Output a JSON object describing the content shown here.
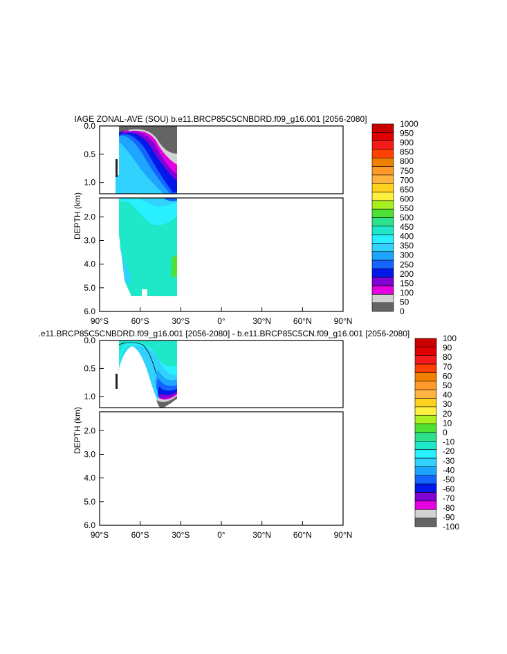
{
  "chart_data": [
    {
      "type": "heatmap",
      "title": "IAGE ZONAL-AVE (SOU) b.e11.BRCP85C5CNBDRD.f09_g16.001 [2056-2080]",
      "ylabel": "DEPTH (km)",
      "x_ticks": [
        "90°S",
        "60°S",
        "30°S",
        "0°",
        "30°N",
        "60°N",
        "90°N"
      ],
      "y_ticks_top": [
        "0.0",
        "0.5",
        "1.0"
      ],
      "y_ticks_bottom": [
        "2.0",
        "3.0",
        "4.0",
        "5.0",
        "6.0"
      ],
      "xlim": [
        -90,
        90
      ],
      "ylim": [
        0,
        6
      ],
      "colorbar": {
        "labels": [
          "1000",
          "950",
          "900",
          "850",
          "800",
          "750",
          "700",
          "650",
          "600",
          "550",
          "500",
          "450",
          "400",
          "350",
          "300",
          "250",
          "200",
          "150",
          "100",
          "50",
          "0"
        ],
        "colors": [
          "#c80000",
          "#e00000",
          "#f51a1a",
          "#ff4000",
          "#f08000",
          "#ff9a2a",
          "#ffb340",
          "#ffd21e",
          "#fff040",
          "#a8f020",
          "#4ee032",
          "#2ce08c",
          "#1ee8c8",
          "#28f0ff",
          "#32d2ff",
          "#1ea5ff",
          "#1464ff",
          "#0018e8",
          "#8000d6",
          "#e400e0",
          "#d2d2d2",
          "#646464"
        ]
      }
    },
    {
      "type": "heatmap",
      "title": ".e11.BRCP85C5CNBDRD.f09_g16.001 [2056-2080] - b.e11.BRCP85C5CN.f09_g16.001 [2056-2080]",
      "ylabel": "DEPTH (km)",
      "x_ticks": [
        "90°S",
        "60°S",
        "30°S",
        "0°",
        "30°N",
        "60°N",
        "90°N"
      ],
      "y_ticks_top": [
        "0.0",
        "0.5",
        "1.0"
      ],
      "y_ticks_bottom": [
        "2.0",
        "3.0",
        "4.0",
        "5.0",
        "6.0"
      ],
      "xlim": [
        -90,
        90
      ],
      "ylim": [
        0,
        6
      ],
      "colorbar": {
        "labels": [
          "100",
          "90",
          "80",
          "70",
          "60",
          "50",
          "40",
          "30",
          "20",
          "10",
          "0",
          "-10",
          "-20",
          "-30",
          "-40",
          "-50",
          "-60",
          "-70",
          "-80",
          "-90",
          "-100"
        ],
        "colors": [
          "#c80000",
          "#e00000",
          "#f51a1a",
          "#ff4000",
          "#f08000",
          "#ff9a2a",
          "#ffb340",
          "#ffd21e",
          "#fff040",
          "#a8f020",
          "#4ee032",
          "#2ce08c",
          "#1ee8c8",
          "#28f0ff",
          "#32d2ff",
          "#1ea5ff",
          "#1464ff",
          "#0018e8",
          "#8000d6",
          "#e400e0",
          "#d2d2d2",
          "#646464"
        ]
      }
    }
  ]
}
